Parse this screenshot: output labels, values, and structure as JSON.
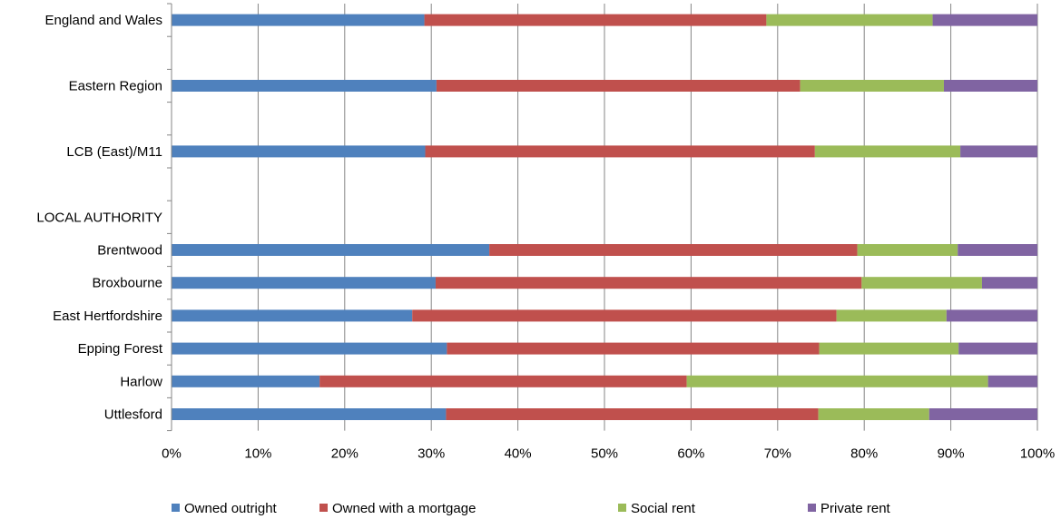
{
  "chart_data": {
    "type": "bar",
    "orientation": "horizontal",
    "stacked": "percent",
    "title": "",
    "xlabel": "",
    "ylabel": "",
    "xlim": [
      0,
      100
    ],
    "x_ticks": [
      "0%",
      "10%",
      "20%",
      "30%",
      "40%",
      "50%",
      "60%",
      "70%",
      "80%",
      "90%",
      "100%"
    ],
    "grid": "vertical",
    "legend_position": "bottom",
    "categories": [
      "England and Wales",
      "",
      "Eastern Region",
      "",
      "LCB (East)/M11",
      "",
      "LOCAL AUTHORITY",
      "Brentwood",
      "Broxbourne",
      "East Hertfordshire",
      "Epping Forest",
      "Harlow",
      "Uttlesford"
    ],
    "series": [
      {
        "name": "Owned outright",
        "color": "#4F81BD",
        "values": [
          29.2,
          null,
          30.6,
          null,
          29.3,
          null,
          null,
          36.7,
          30.5,
          27.8,
          31.8,
          17.1,
          31.7
        ]
      },
      {
        "name": "Owned with a mortgage",
        "color": "#C0504D",
        "values": [
          39.5,
          null,
          42.0,
          null,
          45.0,
          null,
          null,
          42.5,
          49.2,
          49.0,
          43.0,
          42.4,
          43.0
        ]
      },
      {
        "name": "Social rent",
        "color": "#9BBB59",
        "values": [
          19.2,
          null,
          16.6,
          null,
          16.8,
          null,
          null,
          11.6,
          13.9,
          12.7,
          16.1,
          34.8,
          12.8
        ]
      },
      {
        "name": "Private rent",
        "color": "#8064A2",
        "values": [
          12.1,
          null,
          10.8,
          null,
          8.9,
          null,
          null,
          9.2,
          6.4,
          10.5,
          9.1,
          5.7,
          12.5
        ]
      }
    ]
  }
}
